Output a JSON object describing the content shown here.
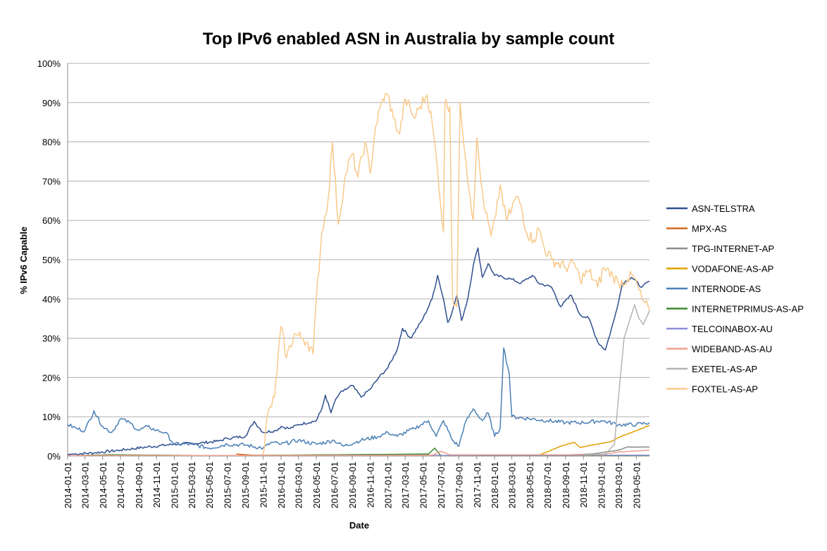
{
  "chart_data": {
    "type": "line",
    "title": "Top IPv6 enabled ASN in Australia by sample count",
    "xlabel": "Date",
    "ylabel": "% IPv6 Capable",
    "x_range": [
      "2014-01-01",
      "2019-06-15"
    ],
    "ylim": [
      0,
      100
    ],
    "y_ticks": [
      "0%",
      "10%",
      "20%",
      "30%",
      "40%",
      "50%",
      "60%",
      "70%",
      "80%",
      "90%",
      "100%"
    ],
    "x_ticks": [
      "2014-01-01",
      "2014-03-01",
      "2014-05-01",
      "2014-07-01",
      "2014-09-01",
      "2014-11-01",
      "2015-01-01",
      "2015-03-01",
      "2015-05-01",
      "2015-07-01",
      "2015-09-01",
      "2015-11-01",
      "2016-01-01",
      "2016-03-01",
      "2016-05-01",
      "2016-07-01",
      "2016-09-01",
      "2016-11-01",
      "2017-01-01",
      "2017-03-01",
      "2017-05-01",
      "2017-07-01",
      "2017-09-01",
      "2017-11-01",
      "2018-01-01",
      "2018-03-01",
      "2018-05-01",
      "2018-07-01",
      "2018-09-01",
      "2018-11-01",
      "2019-01-01",
      "2019-03-01",
      "2019-05-01"
    ],
    "grid": true,
    "legend_position": "right",
    "series": [
      {
        "name": "ASN-TELSTRA",
        "color": "#2f4f8f",
        "points": [
          [
            "2014-01-01",
            0.4
          ],
          [
            "2014-04-01",
            0.8
          ],
          [
            "2014-07-01",
            1.5
          ],
          [
            "2014-10-01",
            2.3
          ],
          [
            "2015-01-01",
            3.0
          ],
          [
            "2015-04-01",
            3.3
          ],
          [
            "2015-06-01",
            3.8
          ],
          [
            "2015-07-01",
            4.5
          ],
          [
            "2015-09-01",
            5.0
          ],
          [
            "2015-10-01",
            8.8
          ],
          [
            "2015-11-01",
            6.0
          ],
          [
            "2015-12-15",
            6.5
          ],
          [
            "2016-01-01",
            7.5
          ],
          [
            "2016-02-01",
            7.0
          ],
          [
            "2016-03-01",
            8.0
          ],
          [
            "2016-05-01",
            9.0
          ],
          [
            "2016-05-20",
            12.0
          ],
          [
            "2016-06-01",
            15.5
          ],
          [
            "2016-06-20",
            11.0
          ],
          [
            "2016-07-01",
            13.5
          ],
          [
            "2016-07-20",
            16.0
          ],
          [
            "2016-08-01",
            16.5
          ],
          [
            "2016-09-01",
            18.0
          ],
          [
            "2016-10-01",
            15.0
          ],
          [
            "2016-11-01",
            17.0
          ],
          [
            "2016-12-01",
            20.0
          ],
          [
            "2017-01-01",
            22.5
          ],
          [
            "2017-02-01",
            27.0
          ],
          [
            "2017-02-20",
            32.5
          ],
          [
            "2017-03-20",
            30.0
          ],
          [
            "2017-05-01",
            35.0
          ],
          [
            "2017-06-01",
            40.0
          ],
          [
            "2017-06-20",
            46.0
          ],
          [
            "2017-07-10",
            40.0
          ],
          [
            "2017-07-25",
            34.0
          ],
          [
            "2017-08-10",
            37.0
          ],
          [
            "2017-08-25",
            41.0
          ],
          [
            "2017-09-10",
            34.5
          ],
          [
            "2017-10-01",
            40.0
          ],
          [
            "2017-10-20",
            48.5
          ],
          [
            "2017-11-05",
            53.0
          ],
          [
            "2017-11-20",
            45.5
          ],
          [
            "2017-12-10",
            49.0
          ],
          [
            "2018-01-01",
            46.0
          ],
          [
            "2018-03-01",
            45.0
          ],
          [
            "2018-04-01",
            44.0
          ],
          [
            "2018-05-10",
            46.0
          ],
          [
            "2018-06-01",
            44.0
          ],
          [
            "2018-07-15",
            43.0
          ],
          [
            "2018-08-15",
            38.0
          ],
          [
            "2018-09-20",
            41.0
          ],
          [
            "2018-10-20",
            36.0
          ],
          [
            "2018-11-20",
            35.0
          ],
          [
            "2018-12-20",
            29.0
          ],
          [
            "2019-01-15",
            27.0
          ],
          [
            "2019-02-15",
            35.0
          ],
          [
            "2019-03-15",
            44.0
          ],
          [
            "2019-04-15",
            45.5
          ],
          [
            "2019-05-20",
            43.0
          ],
          [
            "2019-06-15",
            44.5
          ]
        ]
      },
      {
        "name": "MPX-AS",
        "color": "#d2691e",
        "points": [
          [
            "2015-08-01",
            0.5
          ],
          [
            "2015-10-01",
            0.2
          ],
          [
            "2015-12-01",
            0.1
          ],
          [
            "2019-06-15",
            0.1
          ]
        ]
      },
      {
        "name": "TPG-INTERNET-AP",
        "color": "#8c8c8c",
        "points": [
          [
            "2018-08-01",
            0.2
          ],
          [
            "2018-12-01",
            0.5
          ],
          [
            "2019-03-01",
            1.5
          ],
          [
            "2019-04-01",
            2.3
          ],
          [
            "2019-06-15",
            2.3
          ]
        ]
      },
      {
        "name": "VODAFONE-AS-AP",
        "color": "#e0a000",
        "points": [
          [
            "2018-06-01",
            0.2
          ],
          [
            "2018-07-15",
            1.5
          ],
          [
            "2018-08-15",
            2.5
          ],
          [
            "2018-10-01",
            3.5
          ],
          [
            "2018-10-20",
            2.2
          ],
          [
            "2018-12-01",
            2.8
          ],
          [
            "2019-02-01",
            3.6
          ],
          [
            "2019-03-10",
            5.0
          ],
          [
            "2019-04-15",
            6.0
          ],
          [
            "2019-06-15",
            7.8
          ]
        ]
      },
      {
        "name": "INTERNODE-AS",
        "color": "#4a7fb5",
        "points": [
          [
            "2014-01-01",
            8.0
          ],
          [
            "2014-02-01",
            7.0
          ],
          [
            "2014-03-01",
            6.5
          ],
          [
            "2014-04-01",
            11.5
          ],
          [
            "2014-05-01",
            7.5
          ],
          [
            "2014-06-01",
            6.0
          ],
          [
            "2014-07-01",
            9.5
          ],
          [
            "2014-08-01",
            8.5
          ],
          [
            "2014-09-01",
            6.5
          ],
          [
            "2014-10-01",
            7.5
          ],
          [
            "2014-11-01",
            6.5
          ],
          [
            "2014-12-01",
            6.0
          ],
          [
            "2015-01-01",
            3.0
          ],
          [
            "2015-03-01",
            3.0
          ],
          [
            "2015-05-01",
            2.0
          ],
          [
            "2015-07-01",
            3.0
          ],
          [
            "2015-09-01",
            2.8
          ],
          [
            "2015-11-01",
            2.0
          ],
          [
            "2015-12-01",
            3.5
          ],
          [
            "2016-01-01",
            3.0
          ],
          [
            "2016-03-01",
            4.0
          ],
          [
            "2016-05-01",
            3.0
          ],
          [
            "2016-07-01",
            4.0
          ],
          [
            "2016-08-01",
            2.5
          ],
          [
            "2016-10-01",
            4.0
          ],
          [
            "2016-12-01",
            5.0
          ],
          [
            "2017-01-01",
            6.0
          ],
          [
            "2017-02-01",
            5.0
          ],
          [
            "2017-04-01",
            7.0
          ],
          [
            "2017-05-20",
            9.0
          ],
          [
            "2017-06-15",
            5.0
          ],
          [
            "2017-07-10",
            9.0
          ],
          [
            "2017-08-10",
            4.0
          ],
          [
            "2017-09-01",
            2.5
          ],
          [
            "2017-09-20",
            8.0
          ],
          [
            "2017-10-20",
            12.0
          ],
          [
            "2017-11-20",
            9.0
          ],
          [
            "2017-12-10",
            11.0
          ],
          [
            "2018-01-01",
            5.0
          ],
          [
            "2018-01-20",
            7.0
          ],
          [
            "2018-02-01",
            27.5
          ],
          [
            "2018-02-20",
            21.0
          ],
          [
            "2018-03-01",
            10.0
          ],
          [
            "2018-05-01",
            9.5
          ],
          [
            "2018-07-01",
            9.0
          ],
          [
            "2018-09-01",
            8.5
          ],
          [
            "2018-11-01",
            8.5
          ],
          [
            "2019-01-01",
            9.0
          ],
          [
            "2019-03-01",
            8.0
          ],
          [
            "2019-05-01",
            8.0
          ],
          [
            "2019-06-15",
            8.5
          ]
        ]
      },
      {
        "name": "INTERNETPRIMUS-AS-AP",
        "color": "#3a8a2a",
        "points": [
          [
            "2014-01-01",
            0.1
          ],
          [
            "2014-06-01",
            0.3
          ],
          [
            "2015-06-01",
            0.1
          ],
          [
            "2017-05-20",
            0.5
          ],
          [
            "2017-06-10",
            2.0
          ],
          [
            "2017-07-01",
            0.1
          ],
          [
            "2019-06-15",
            0.1
          ]
        ]
      },
      {
        "name": "TELCOINABOX-AU",
        "color": "#8e8ed6",
        "points": [
          [
            "2014-01-01",
            0.1
          ],
          [
            "2019-06-15",
            0.2
          ]
        ]
      },
      {
        "name": "WIDEBAND-AS-AU",
        "color": "#f0a090",
        "points": [
          [
            "2014-01-01",
            0.1
          ],
          [
            "2017-06-01",
            0.2
          ],
          [
            "2017-07-01",
            1.2
          ],
          [
            "2017-08-01",
            0.3
          ],
          [
            "2019-01-01",
            0.3
          ],
          [
            "2019-03-01",
            1.0
          ],
          [
            "2019-06-15",
            1.5
          ]
        ]
      },
      {
        "name": "EXETEL-AS-AP",
        "color": "#b4b4b4",
        "points": [
          [
            "2018-11-01",
            0.2
          ],
          [
            "2019-01-15",
            0.5
          ],
          [
            "2019-02-15",
            3.0
          ],
          [
            "2019-03-01",
            15.0
          ],
          [
            "2019-03-20",
            30.0
          ],
          [
            "2019-04-10",
            35.0
          ],
          [
            "2019-04-25",
            38.5
          ],
          [
            "2019-05-10",
            35.0
          ],
          [
            "2019-05-25",
            33.5
          ],
          [
            "2019-06-15",
            37.0
          ]
        ]
      },
      {
        "name": "FOXTEL-AS-AP",
        "color": "#f8c98a",
        "points": [
          [
            "2015-11-01",
            0.3
          ],
          [
            "2015-11-15",
            10.0
          ],
          [
            "2015-12-10",
            15.0
          ],
          [
            "2016-01-01",
            33.0
          ],
          [
            "2016-01-20",
            25.0
          ],
          [
            "2016-02-15",
            31.0
          ],
          [
            "2016-03-15",
            30.0
          ],
          [
            "2016-04-01",
            29.0
          ],
          [
            "2016-04-20",
            26.0
          ],
          [
            "2016-05-01",
            40.0
          ],
          [
            "2016-05-20",
            57.0
          ],
          [
            "2016-06-10",
            65.0
          ],
          [
            "2016-06-25",
            80.0
          ],
          [
            "2016-07-15",
            59.0
          ],
          [
            "2016-08-10",
            72.0
          ],
          [
            "2016-09-01",
            77.0
          ],
          [
            "2016-09-20",
            71.0
          ],
          [
            "2016-10-15",
            80.0
          ],
          [
            "2016-11-01",
            72.0
          ],
          [
            "2016-11-20",
            84.0
          ],
          [
            "2016-12-15",
            91.0
          ],
          [
            "2017-01-01",
            92.0
          ],
          [
            "2017-01-20",
            86.0
          ],
          [
            "2017-02-10",
            82.0
          ],
          [
            "2017-03-01",
            91.0
          ],
          [
            "2017-04-01",
            86.0
          ],
          [
            "2017-04-20",
            89.0
          ],
          [
            "2017-05-15",
            92.0
          ],
          [
            "2017-06-01",
            85.0
          ],
          [
            "2017-06-20",
            73.0
          ],
          [
            "2017-07-10",
            57.0
          ],
          [
            "2017-07-15",
            90.0
          ],
          [
            "2017-08-01",
            89.0
          ],
          [
            "2017-08-10",
            40.0
          ],
          [
            "2017-08-25",
            38.0
          ],
          [
            "2017-09-05",
            90.0
          ],
          [
            "2017-09-25",
            75.0
          ],
          [
            "2017-10-20",
            60.0
          ],
          [
            "2017-11-01",
            81.0
          ],
          [
            "2017-11-15",
            70.0
          ],
          [
            "2017-12-01",
            62.0
          ],
          [
            "2017-12-20",
            56.0
          ],
          [
            "2018-01-05",
            61.0
          ],
          [
            "2018-01-20",
            69.0
          ],
          [
            "2018-02-10",
            60.0
          ],
          [
            "2018-03-01",
            63.0
          ],
          [
            "2018-03-15",
            66.0
          ],
          [
            "2018-04-01",
            64.0
          ],
          [
            "2018-04-20",
            57.0
          ],
          [
            "2018-05-15",
            55.0
          ],
          [
            "2018-06-01",
            58.0
          ],
          [
            "2018-06-20",
            53.0
          ],
          [
            "2018-07-15",
            50.0
          ],
          [
            "2018-09-01",
            48.0
          ],
          [
            "2018-10-01",
            49.0
          ],
          [
            "2018-10-20",
            45.0
          ],
          [
            "2018-11-20",
            47.0
          ],
          [
            "2018-12-20",
            43.0
          ],
          [
            "2019-01-10",
            48.0
          ],
          [
            "2019-02-10",
            46.0
          ],
          [
            "2019-03-01",
            44.0
          ],
          [
            "2019-04-01",
            45.0
          ],
          [
            "2019-04-20",
            46.0
          ],
          [
            "2019-05-20",
            40.0
          ],
          [
            "2019-06-15",
            37.0
          ]
        ]
      }
    ]
  }
}
